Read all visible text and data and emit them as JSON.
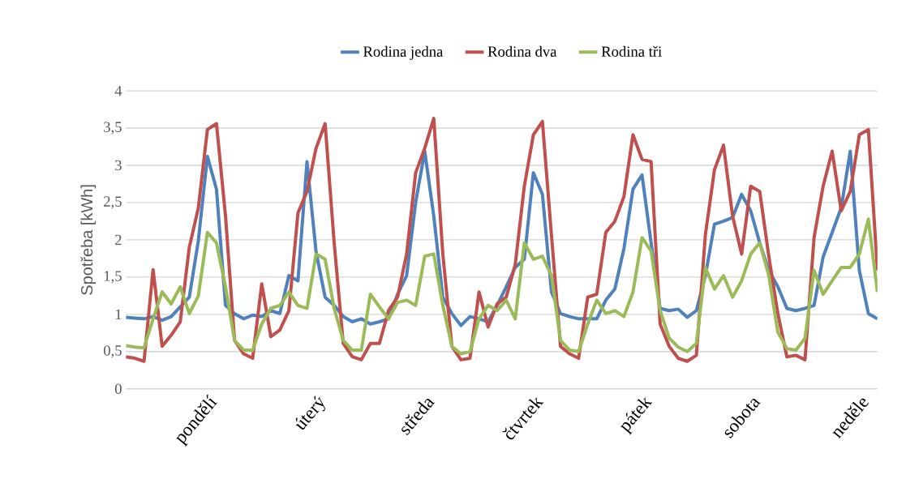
{
  "chart_data": {
    "type": "line",
    "ylabel": "Spotřeba [kWh]",
    "grid": "y",
    "legend": "top",
    "line_style": "solid",
    "categories": [
      null,
      null,
      null,
      null,
      null,
      null,
      null,
      null,
      null,
      "pondělí",
      null,
      null,
      null,
      null,
      null,
      null,
      null,
      null,
      null,
      null,
      null,
      "úterý",
      null,
      null,
      null,
      null,
      null,
      null,
      null,
      null,
      null,
      null,
      null,
      "středa",
      null,
      null,
      null,
      null,
      null,
      null,
      null,
      null,
      null,
      null,
      null,
      "čtvrtek",
      null,
      null,
      null,
      null,
      null,
      null,
      null,
      null,
      null,
      null,
      null,
      "pátek",
      null,
      null,
      null,
      null,
      null,
      null,
      null,
      null,
      null,
      null,
      null,
      "sobota",
      null,
      null,
      null,
      null,
      null,
      null,
      null,
      null,
      null,
      null,
      null,
      "neděle",
      null,
      null
    ],
    "ylim": [
      0,
      4
    ],
    "yticks": [
      0,
      {
        "value": 0.5,
        "label": "0,5"
      },
      1,
      {
        "value": 1.5,
        "label": "1,5"
      },
      2,
      {
        "value": 2.5,
        "label": "2,5"
      },
      3,
      {
        "value": 3.5,
        "label": "3,5"
      },
      4
    ],
    "series": [
      {
        "name": "Rodina jedna",
        "color": "#4f81bd",
        "values": [
          0.96,
          0.95,
          0.94,
          0.97,
          0.92,
          0.97,
          1.1,
          1.23,
          1.99,
          3.12,
          2.68,
          1.12,
          1.01,
          0.94,
          0.99,
          0.97,
          1.05,
          1.01,
          1.52,
          1.45,
          3.05,
          1.84,
          1.23,
          1.12,
          0.97,
          0.9,
          0.94,
          0.87,
          0.9,
          0.94,
          1.27,
          1.52,
          2.5,
          3.19,
          2.32,
          1.23,
          1.01,
          0.85,
          0.97,
          0.94,
          0.9,
          1.12,
          1.37,
          1.63,
          1.74,
          2.9,
          2.61,
          1.3,
          1.01,
          0.97,
          0.94,
          0.94,
          0.94,
          1.19,
          1.34,
          1.88,
          2.68,
          2.87,
          1.96,
          1.08,
          1.05,
          1.07,
          0.96,
          1.05,
          1.52,
          2.21,
          2.25,
          2.3,
          2.61,
          2.39,
          1.96,
          1.59,
          1.37,
          1.08,
          1.05,
          1.08,
          1.12,
          1.77,
          2.1,
          2.43,
          3.19,
          1.59,
          1.01,
          0.94
        ]
      },
      {
        "name": "Rodina dva",
        "color": "#c0504d",
        "values": [
          0.43,
          0.41,
          0.37,
          1.6,
          0.57,
          0.72,
          0.9,
          1.9,
          2.43,
          3.48,
          3.56,
          2.32,
          0.65,
          0.47,
          0.41,
          1.41,
          0.7,
          0.79,
          1.05,
          2.36,
          2.65,
          3.23,
          3.56,
          1.96,
          0.61,
          0.43,
          0.39,
          0.61,
          0.61,
          1.05,
          1.23,
          1.81,
          2.9,
          3.23,
          3.63,
          1.81,
          0.57,
          0.39,
          0.41,
          1.3,
          0.83,
          1.14,
          1.23,
          1.67,
          2.72,
          3.41,
          3.59,
          2.06,
          0.57,
          0.47,
          0.41,
          1.23,
          1.27,
          2.1,
          2.25,
          2.58,
          3.41,
          3.08,
          3.05,
          0.87,
          0.57,
          0.41,
          0.37,
          0.45,
          2.07,
          2.94,
          3.27,
          2.32,
          1.81,
          2.72,
          2.65,
          1.78,
          1.01,
          0.43,
          0.45,
          0.39,
          2.03,
          2.72,
          3.19,
          2.39,
          2.65,
          3.41,
          3.48,
          1.59
        ]
      },
      {
        "name": "Rodina tři",
        "color": "#9bbb59",
        "values": [
          0.58,
          0.56,
          0.55,
          0.94,
          1.3,
          1.14,
          1.37,
          1.01,
          1.25,
          2.1,
          1.96,
          1.37,
          0.65,
          0.52,
          0.52,
          0.87,
          1.08,
          1.12,
          1.3,
          1.12,
          1.08,
          1.81,
          1.74,
          1.08,
          0.65,
          0.52,
          0.52,
          1.27,
          1.1,
          0.94,
          1.16,
          1.19,
          1.12,
          1.78,
          1.81,
          1.12,
          0.57,
          0.47,
          0.5,
          0.94,
          1.12,
          1.05,
          1.19,
          0.94,
          1.96,
          1.74,
          1.78,
          1.52,
          0.65,
          0.52,
          0.5,
          0.87,
          1.19,
          1.01,
          1.05,
          0.97,
          1.3,
          2.03,
          1.85,
          1.05,
          0.68,
          0.56,
          0.5,
          0.61,
          1.63,
          1.34,
          1.52,
          1.23,
          1.45,
          1.81,
          1.96,
          1.52,
          0.76,
          0.54,
          0.52,
          0.68,
          1.59,
          1.27,
          1.45,
          1.63,
          1.63,
          1.81,
          2.28,
          1.3
        ]
      }
    ]
  }
}
